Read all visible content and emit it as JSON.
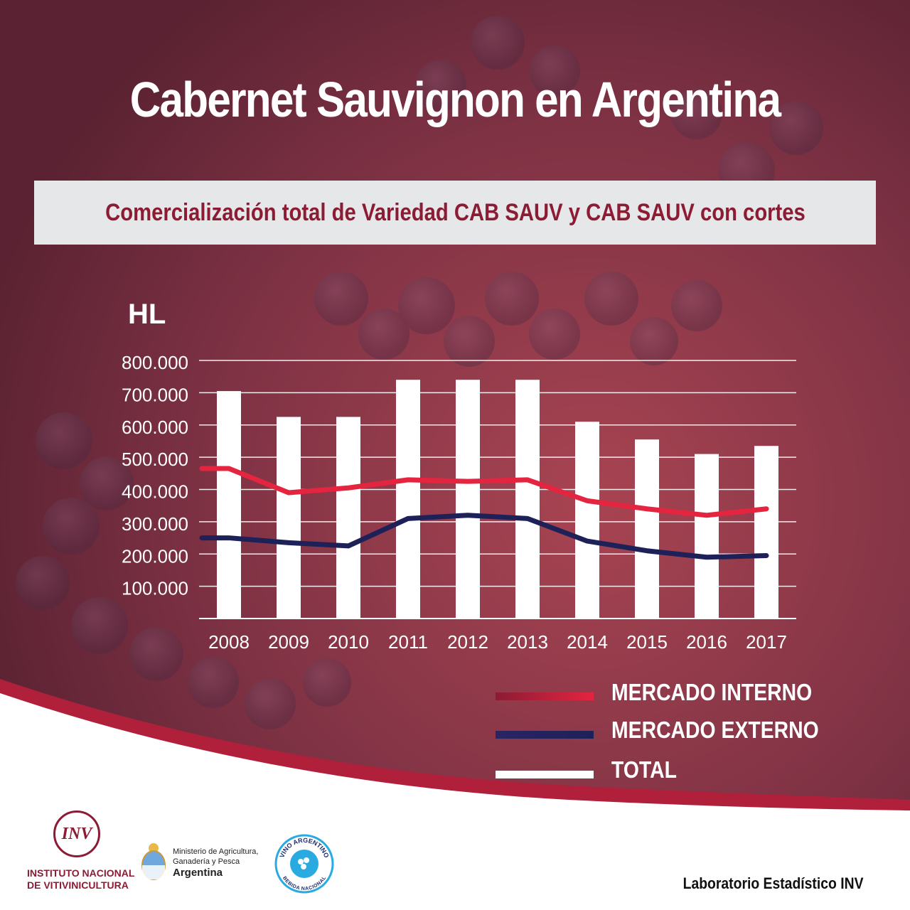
{
  "title": "Cabernet Sauvignon en Argentina",
  "subtitle": "Comercialización total de Variedad CAB SAUV y CAB SAUV con cortes",
  "colors": {
    "background": "#6e2b3a",
    "interno": "#e5243f",
    "externo": "#1e2158",
    "total": "#ffffff",
    "accent": "#b0203a"
  },
  "chart_data": {
    "type": "bar",
    "ylabel": "HL",
    "ylim": [
      0,
      800000
    ],
    "y_ticks": [
      "100.000",
      "200.000",
      "300.000",
      "400.000",
      "500.000",
      "600.000",
      "700.000",
      "800.000"
    ],
    "y_tick_values": [
      100000,
      200000,
      300000,
      400000,
      500000,
      600000,
      700000,
      800000
    ],
    "categories": [
      "2008",
      "2009",
      "2010",
      "2011",
      "2012",
      "2013",
      "2014",
      "2015",
      "2016",
      "2017"
    ],
    "grid": true,
    "legend_position": "bottom-right",
    "series": [
      {
        "name": "TOTAL",
        "kind": "bar",
        "values": [
          705000,
          625000,
          625000,
          740000,
          740000,
          740000,
          610000,
          555000,
          510000,
          535000
        ]
      },
      {
        "name": "MERCADO INTERNO",
        "kind": "line",
        "values": [
          465000,
          390000,
          405000,
          430000,
          425000,
          430000,
          365000,
          340000,
          320000,
          340000
        ]
      },
      {
        "name": "MERCADO EXTERNO",
        "kind": "line",
        "values": [
          250000,
          235000,
          225000,
          310000,
          320000,
          310000,
          240000,
          210000,
          190000,
          195000
        ]
      }
    ]
  },
  "footer": {
    "inv_logo": "INV",
    "inv_line1": "INSTITUTO NACIONAL",
    "inv_line2": "DE VITIVINICULTURA",
    "ministerio_line1": "Ministerio de Agricultura,",
    "ministerio_line2": "Ganadería y Pesca",
    "ministerio_line3": "Argentina",
    "vino_top": "VINO ARGENTINO",
    "vino_bottom": "BEBIDA NACIONAL",
    "lab": "Laboratorio Estadístico INV"
  }
}
